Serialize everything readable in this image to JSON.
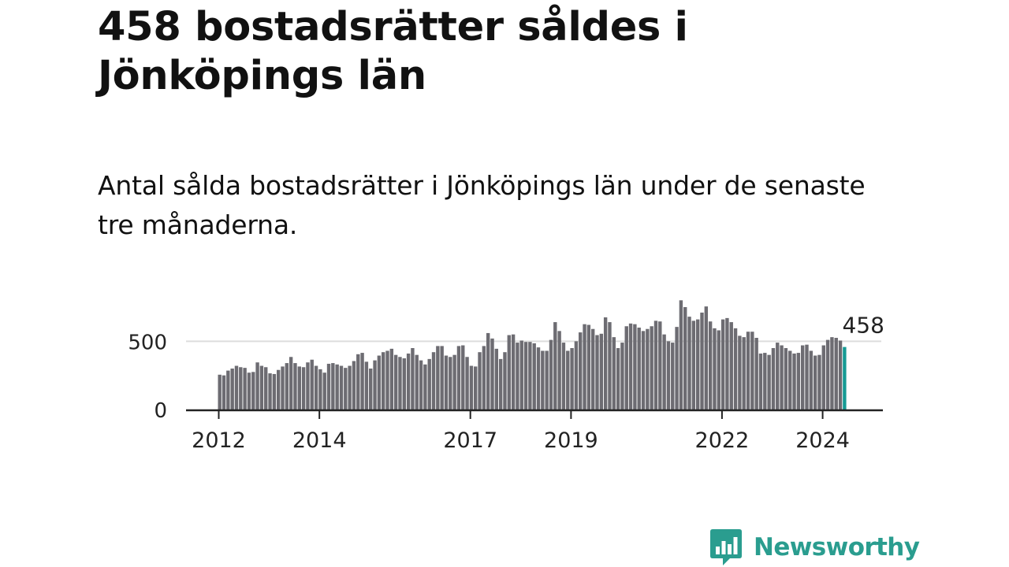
{
  "title": "458 bostadsrätter såldes i Jönköpings län",
  "subtitle": "Antal sålda bostadsrätter i Jönköpings län under de senaste tre månaderna.",
  "brand": {
    "name": "Newsworthy",
    "color": "#2a9d8f",
    "icon": "newsworthy-logo-icon"
  },
  "colors": {
    "bar": "#6d6c72",
    "highlight": "#169b94",
    "grid": "#dddddd",
    "axis": "#222222"
  },
  "chart_data": {
    "type": "bar",
    "ylim": [
      0,
      900
    ],
    "grid": true,
    "yticks": [
      0,
      500
    ],
    "xticks": [
      {
        "label": "2012",
        "index": 0
      },
      {
        "label": "2014",
        "index": 24
      },
      {
        "label": "2017",
        "index": 60
      },
      {
        "label": "2019",
        "index": 84
      },
      {
        "label": "2022",
        "index": 120
      },
      {
        "label": "2024",
        "index": 144
      }
    ],
    "annotation": {
      "label": "458",
      "index": 149
    },
    "start": "2012-01",
    "values": [
      255,
      250,
      285,
      300,
      320,
      310,
      305,
      270,
      275,
      345,
      320,
      310,
      265,
      260,
      290,
      315,
      340,
      385,
      340,
      315,
      310,
      345,
      365,
      320,
      295,
      270,
      335,
      340,
      330,
      320,
      305,
      320,
      355,
      405,
      415,
      350,
      300,
      360,
      395,
      420,
      430,
      445,
      400,
      385,
      375,
      410,
      450,
      400,
      360,
      330,
      370,
      420,
      465,
      465,
      395,
      385,
      400,
      465,
      470,
      385,
      320,
      315,
      420,
      465,
      560,
      520,
      445,
      370,
      420,
      545,
      550,
      490,
      505,
      495,
      495,
      485,
      455,
      430,
      430,
      510,
      640,
      575,
      490,
      430,
      450,
      500,
      565,
      625,
      620,
      590,
      545,
      555,
      675,
      640,
      530,
      450,
      490,
      610,
      630,
      625,
      600,
      575,
      590,
      610,
      650,
      645,
      550,
      500,
      490,
      605,
      800,
      750,
      680,
      650,
      660,
      710,
      755,
      645,
      595,
      580,
      660,
      670,
      640,
      595,
      540,
      530,
      570,
      570,
      525,
      410,
      415,
      400,
      450,
      490,
      470,
      450,
      430,
      410,
      415,
      470,
      475,
      430,
      395,
      400,
      470,
      510,
      530,
      525,
      505,
      458
    ]
  }
}
